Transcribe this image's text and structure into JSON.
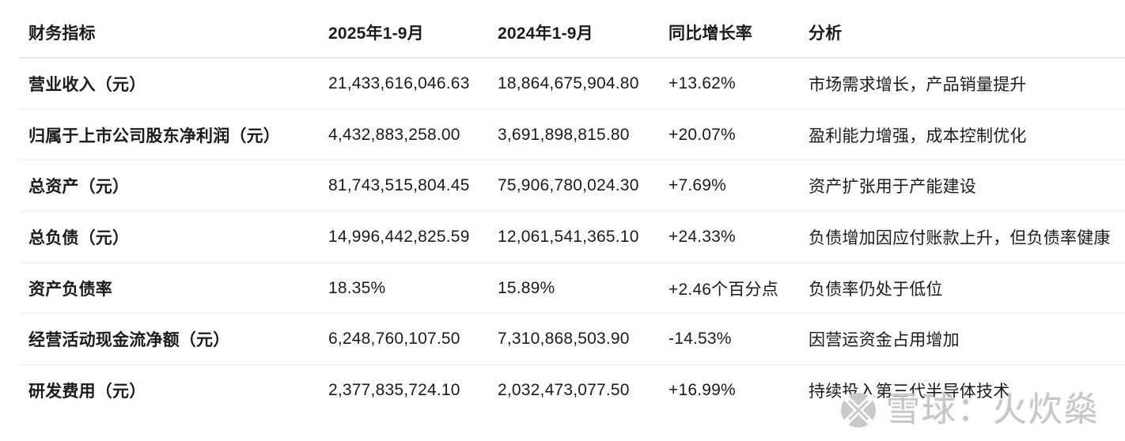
{
  "table": {
    "columns": [
      "财务指标",
      "2025年1-9月",
      "2024年1-9月",
      "同比增长率",
      "分析"
    ],
    "rows": [
      {
        "metric": "营业收入（元）",
        "v2025": "21,433,616,046.63",
        "v2024": "18,864,675,904.80",
        "yoy": "+13.62%",
        "analysis": "市场需求增长，产品销量提升"
      },
      {
        "metric": "归属于上市公司股东净利润（元）",
        "v2025": "4,432,883,258.00",
        "v2024": "3,691,898,815.80",
        "yoy": "+20.07%",
        "analysis": "盈利能力增强，成本控制优化"
      },
      {
        "metric": "总资产（元）",
        "v2025": "81,743,515,804.45",
        "v2024": "75,906,780,024.30",
        "yoy": "+7.69%",
        "analysis": "资产扩张用于产能建设"
      },
      {
        "metric": "总负债（元）",
        "v2025": "14,996,442,825.59",
        "v2024": "12,061,541,365.10",
        "yoy": "+24.33%",
        "analysis": "负债增加因应付账款上升，但负债率健康"
      },
      {
        "metric": "资产负债率",
        "v2025": "18.35%",
        "v2024": "15.89%",
        "yoy": "+2.46个百分点",
        "analysis": "负债率仍处于低位"
      },
      {
        "metric": "经营活动现金流净额（元）",
        "v2025": "6,248,760,107.50",
        "v2024": "7,310,868,503.90",
        "yoy": "-14.53%",
        "analysis": "因营运资金占用增加"
      },
      {
        "metric": "研发费用（元）",
        "v2025": "2,377,835,724.10",
        "v2024": "2,032,473,077.50",
        "yoy": "+16.99%",
        "analysis": "持续投入第三代半导体技术"
      }
    ]
  },
  "watermark": {
    "logo_icon": "xueqiu-snowball-logo",
    "text": "雪球：火炊燊"
  },
  "colors": {
    "text": "#1b1b1b",
    "header_divider": "#e6e6e6",
    "row_divider": "#ececec",
    "watermark_gray": "#c7c7c7",
    "background": "#ffffff"
  }
}
